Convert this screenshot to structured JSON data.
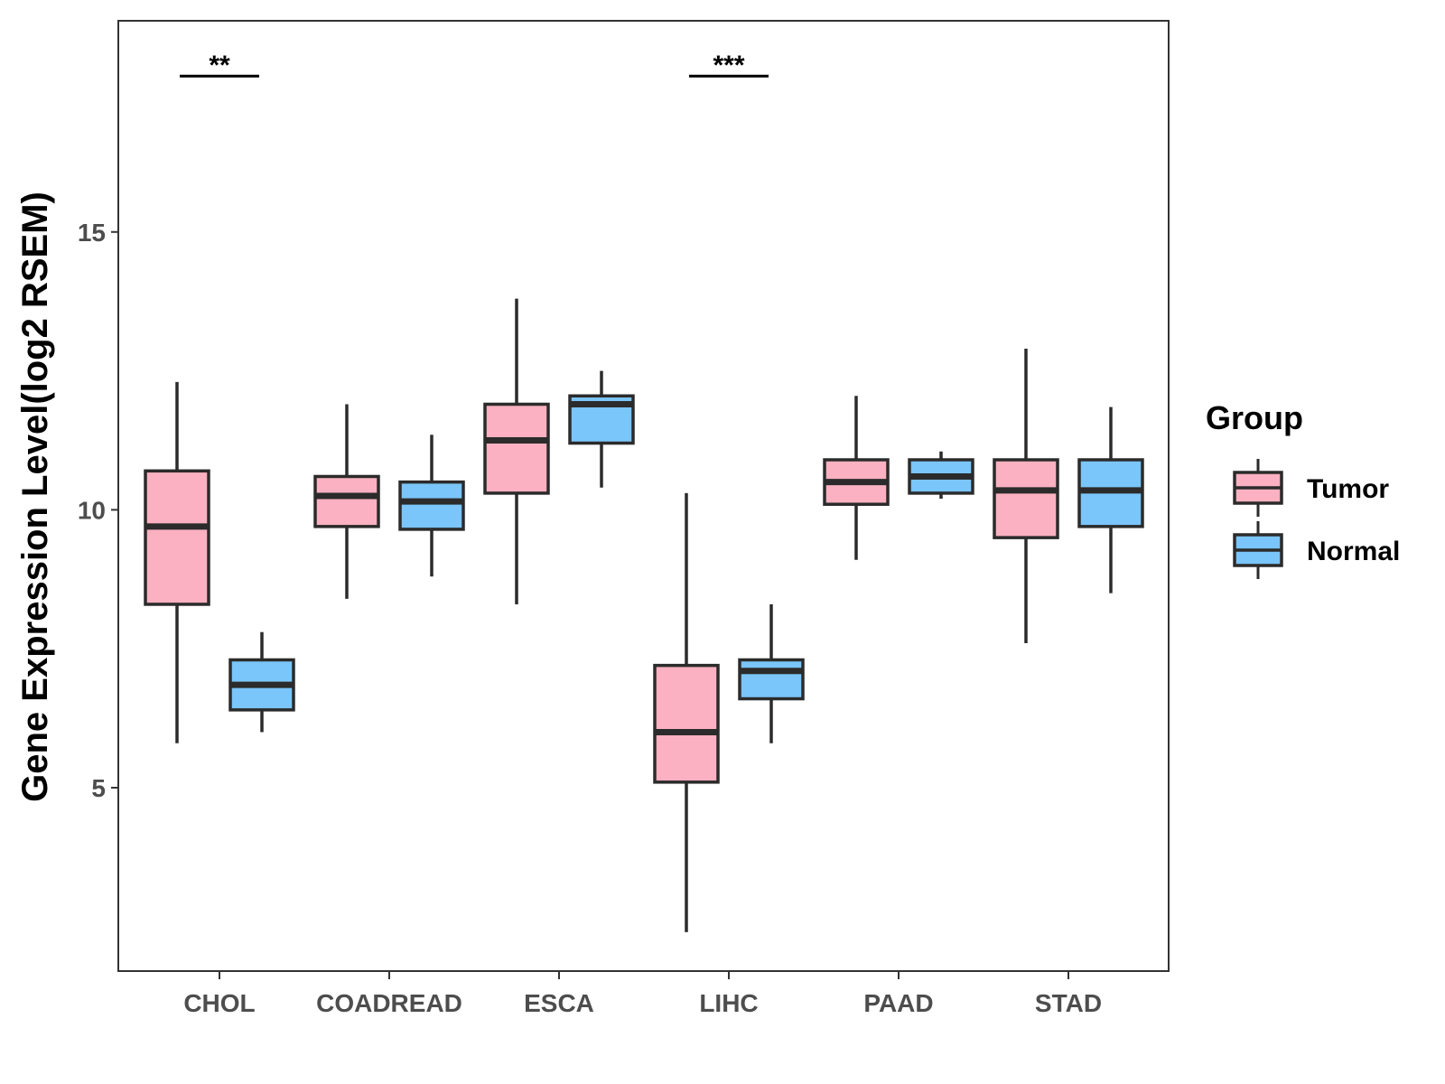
{
  "chart_data": {
    "type": "boxplot",
    "title": "",
    "xlabel": "",
    "ylabel": "Gene Expression Level(log2 RSEM)",
    "ylim": [
      1.7,
      18.8
    ],
    "yticks": [
      5,
      10,
      15
    ],
    "categories": [
      "CHOL",
      "COADREAD",
      "ESCA",
      "LIHC",
      "PAAD",
      "STAD"
    ],
    "legend": {
      "title": "Group",
      "position": "right"
    },
    "series": [
      {
        "name": "Tumor",
        "color": "#FBB1C1",
        "boxes": [
          {
            "category": "CHOL",
            "min": 5.8,
            "q1": 8.3,
            "median": 9.7,
            "q3": 10.7,
            "max": 12.3
          },
          {
            "category": "COADREAD",
            "min": 8.4,
            "q1": 9.7,
            "median": 10.25,
            "q3": 10.6,
            "max": 11.9
          },
          {
            "category": "ESCA",
            "min": 8.3,
            "q1": 10.3,
            "median": 11.25,
            "q3": 11.9,
            "max": 13.8
          },
          {
            "category": "LIHC",
            "min": 2.4,
            "q1": 5.1,
            "median": 6.0,
            "q3": 7.2,
            "max": 10.3
          },
          {
            "category": "PAAD",
            "min": 9.1,
            "q1": 10.1,
            "median": 10.5,
            "q3": 10.9,
            "max": 12.05
          },
          {
            "category": "STAD",
            "min": 7.6,
            "q1": 9.5,
            "median": 10.35,
            "q3": 10.9,
            "max": 12.9
          }
        ]
      },
      {
        "name": "Normal",
        "color": "#7AC5F9",
        "boxes": [
          {
            "category": "CHOL",
            "min": 6.0,
            "q1": 6.4,
            "median": 6.85,
            "q3": 7.3,
            "max": 7.8
          },
          {
            "category": "COADREAD",
            "min": 8.8,
            "q1": 9.65,
            "median": 10.15,
            "q3": 10.5,
            "max": 11.35
          },
          {
            "category": "ESCA",
            "min": 10.4,
            "q1": 11.2,
            "median": 11.9,
            "q3": 12.05,
            "max": 12.5
          },
          {
            "category": "LIHC",
            "min": 5.8,
            "q1": 6.6,
            "median": 7.1,
            "q3": 7.3,
            "max": 8.3
          },
          {
            "category": "PAAD",
            "min": 10.2,
            "q1": 10.3,
            "median": 10.6,
            "q3": 10.9,
            "max": 11.05
          },
          {
            "category": "STAD",
            "min": 8.5,
            "q1": 9.7,
            "median": 10.35,
            "q3": 10.9,
            "max": 11.85
          }
        ]
      }
    ],
    "annotations": [
      {
        "category": "CHOL",
        "label": "**",
        "y": 18.0
      },
      {
        "category": "LIHC",
        "label": "***",
        "y": 18.0
      }
    ]
  }
}
